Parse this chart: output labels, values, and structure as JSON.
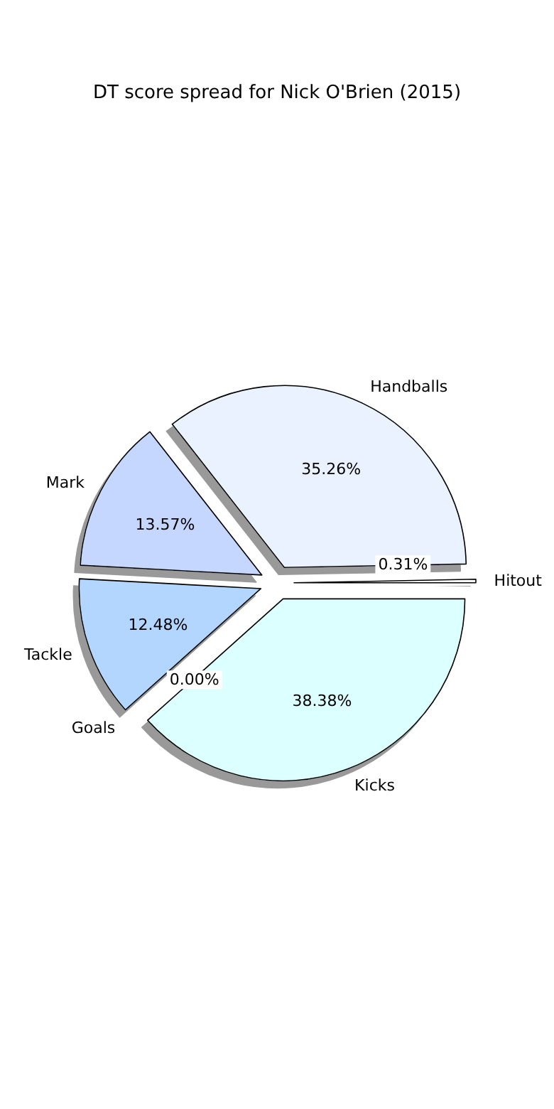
{
  "chart_data": {
    "type": "pie",
    "title": "DT score spread for Nick O'Brien (2015)",
    "categories": [
      "Hitout",
      "Handballs",
      "Mark",
      "Tackle",
      "Goals",
      "Kicks"
    ],
    "values": [
      0.31,
      35.26,
      13.57,
      12.48,
      0.0,
      38.38
    ],
    "value_labels": [
      "0.31%",
      "35.26%",
      "13.57%",
      "12.48%",
      "0.00%",
      "38.38%"
    ],
    "colors": [
      "#ffffff",
      "#eaf2ff",
      "#c5d7ff",
      "#b2d6ff",
      "#c8e0ff",
      "#dcffff"
    ]
  }
}
